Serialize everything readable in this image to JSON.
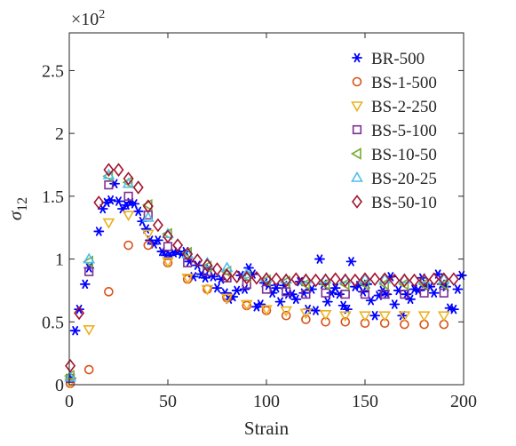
{
  "chart_data": {
    "type": "scatter",
    "title": "",
    "xlabel": "Strain",
    "ylabel": "σ",
    "ylabel_subscript": "12",
    "y_exponent_label": "×10",
    "y_exponent_power": "2",
    "xlim": [
      0,
      200
    ],
    "ylim": [
      0,
      2.8
    ],
    "x_ticks": [
      0,
      50,
      100,
      150,
      200
    ],
    "x_tick_labels": [
      "0",
      "50",
      "100",
      "150",
      "200"
    ],
    "y_ticks": [
      0,
      0.5,
      1,
      1.5,
      2,
      2.5
    ],
    "y_tick_labels": [
      "0",
      "0.5",
      "1",
      "1.5",
      "2",
      "2.5"
    ],
    "grid": false,
    "legend_position": "top-right",
    "series": [
      {
        "name": "BR-500",
        "marker": "asterisk",
        "color": "#0000ff",
        "x": [
          1,
          3,
          5,
          8,
          10,
          15,
          17,
          19,
          21,
          23,
          25,
          27,
          29,
          31,
          33,
          35,
          37,
          39,
          41,
          43,
          45,
          47,
          49,
          51,
          53,
          55,
          57,
          59,
          61,
          63,
          65,
          67,
          69,
          71,
          73,
          75,
          77,
          79,
          81,
          83,
          85,
          87,
          89,
          91,
          93,
          95,
          97,
          99,
          101,
          103,
          105,
          107,
          109,
          111,
          113,
          115,
          117,
          119,
          121,
          123,
          125,
          127,
          129,
          131,
          133,
          135,
          137,
          139,
          141,
          143,
          145,
          147,
          149,
          151,
          153,
          155,
          157,
          159,
          161,
          163,
          165,
          167,
          169,
          171,
          173,
          175,
          177,
          179,
          181,
          183,
          185,
          187,
          189,
          191,
          193,
          195,
          197,
          199
        ],
        "y": [
          0.05,
          0.43,
          0.6,
          0.8,
          0.93,
          1.22,
          1.4,
          1.45,
          1.47,
          1.6,
          1.46,
          1.4,
          1.43,
          1.45,
          1.44,
          1.38,
          1.3,
          1.24,
          1.15,
          1.12,
          1.15,
          1.06,
          1.03,
          1.03,
          1.05,
          1.06,
          1.04,
          1.06,
          0.98,
          0.86,
          0.95,
          0.88,
          0.85,
          0.92,
          0.86,
          0.77,
          0.84,
          0.73,
          0.68,
          0.7,
          0.75,
          0.87,
          0.76,
          0.93,
          0.88,
          0.62,
          0.64,
          0.81,
          0.79,
          0.73,
          0.77,
          0.66,
          0.79,
          0.72,
          0.72,
          0.68,
          0.82,
          0.73,
          0.6,
          0.76,
          0.59,
          1.0,
          0.8,
          0.66,
          0.73,
          0.77,
          0.72,
          0.63,
          0.6,
          0.98,
          0.78,
          0.79,
          0.74,
          0.8,
          0.67,
          0.55,
          0.71,
          0.75,
          0.72,
          0.86,
          0.64,
          0.75,
          0.55,
          0.72,
          0.68,
          0.76,
          0.75,
          0.85,
          0.78,
          0.78,
          0.73,
          0.88,
          0.8,
          0.78,
          0.61,
          0.6,
          0.76,
          0.87
        ]
      },
      {
        "name": "BS-1-500",
        "marker": "circle",
        "color": "#d95319",
        "x": [
          0.5,
          10,
          20,
          30,
          40,
          50,
          60,
          70,
          80,
          90,
          100,
          110,
          120,
          130,
          140,
          150,
          160,
          170,
          180,
          190
        ],
        "y": [
          0.01,
          0.12,
          0.74,
          1.11,
          1.11,
          0.97,
          0.84,
          0.76,
          0.69,
          0.63,
          0.59,
          0.55,
          0.52,
          0.5,
          0.5,
          0.49,
          0.49,
          0.48,
          0.48,
          0.48
        ]
      },
      {
        "name": "BS-2-250",
        "marker": "triangle-down",
        "color": "#edb120",
        "x": [
          0.5,
          10,
          20,
          30,
          40,
          50,
          60,
          70,
          80,
          90,
          100,
          110,
          120,
          130,
          140,
          150,
          160,
          170,
          180,
          190
        ],
        "y": [
          0.02,
          0.44,
          1.29,
          1.35,
          1.2,
          0.98,
          0.85,
          0.76,
          0.69,
          0.64,
          0.6,
          0.59,
          0.57,
          0.56,
          0.55,
          0.55,
          0.55,
          0.55,
          0.55,
          0.55
        ]
      },
      {
        "name": "BS-5-100",
        "marker": "square",
        "color": "#7e2f8e",
        "x": [
          0.5,
          10,
          20,
          30,
          40,
          50,
          60,
          70,
          80,
          90,
          100,
          110,
          120,
          130,
          140,
          150,
          160,
          170,
          180,
          190
        ],
        "y": [
          0.05,
          0.9,
          1.59,
          1.5,
          1.35,
          1.1,
          0.97,
          0.9,
          0.85,
          0.8,
          0.76,
          0.74,
          0.72,
          0.73,
          0.72,
          0.72,
          0.72,
          0.72,
          0.73,
          0.73
        ]
      },
      {
        "name": "BS-10-50",
        "marker": "triangle-left",
        "color": "#77ac30",
        "x": [
          0.5,
          10,
          20,
          30,
          40,
          50,
          60,
          70,
          80,
          90,
          100,
          110,
          120,
          130,
          140,
          150,
          160,
          170,
          180,
          190
        ],
        "y": [
          0.07,
          0.98,
          1.66,
          1.61,
          1.43,
          1.2,
          1.05,
          0.94,
          0.9,
          0.86,
          0.83,
          0.82,
          0.8,
          0.8,
          0.8,
          0.8,
          0.8,
          0.8,
          0.8,
          0.8
        ]
      },
      {
        "name": "BS-20-25",
        "marker": "triangle-up",
        "color": "#4dbeee",
        "x": [
          0.5,
          10,
          20,
          30,
          40,
          50,
          60,
          70,
          80,
          90,
          100,
          110,
          120,
          130,
          140,
          150,
          160,
          170,
          180,
          190
        ],
        "y": [
          0.06,
          1.0,
          1.67,
          1.6,
          1.33,
          1.2,
          1.04,
          0.97,
          0.93,
          0.88,
          0.85,
          0.84,
          0.84,
          0.84,
          0.84,
          0.84,
          0.84,
          0.84,
          0.84,
          0.84
        ]
      },
      {
        "name": "BS-50-10",
        "marker": "diamond",
        "color": "#a2142f",
        "x": [
          0.5,
          5,
          15,
          20,
          25,
          30,
          35,
          40,
          45,
          50,
          55,
          60,
          65,
          70,
          75,
          80,
          85,
          90,
          95,
          100,
          105,
          110,
          115,
          120,
          125,
          130,
          135,
          140,
          145,
          150,
          155,
          160,
          165,
          170,
          175,
          180,
          185,
          190,
          195
        ],
        "y": [
          0.15,
          0.57,
          1.45,
          1.71,
          1.71,
          1.64,
          1.57,
          1.42,
          1.27,
          1.18,
          1.11,
          1.04,
          0.99,
          0.95,
          0.92,
          0.87,
          0.86,
          0.85,
          0.85,
          0.84,
          0.84,
          0.83,
          0.84,
          0.83,
          0.83,
          0.83,
          0.84,
          0.83,
          0.83,
          0.84,
          0.84,
          0.84,
          0.83,
          0.83,
          0.83,
          0.83,
          0.84,
          0.84,
          0.84
        ]
      }
    ]
  }
}
